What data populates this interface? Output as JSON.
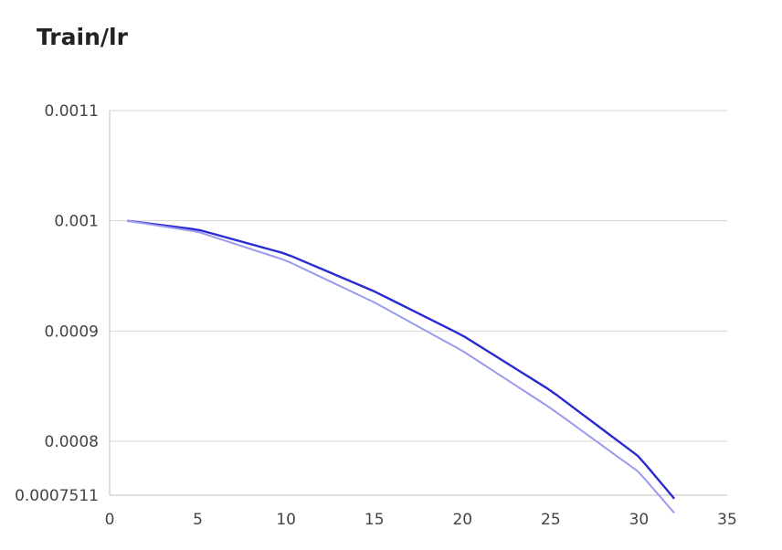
{
  "chart_data": {
    "type": "line",
    "title": "Train/lr",
    "xlabel": "",
    "ylabel": "",
    "xlim": [
      0,
      35
    ],
    "ylim": [
      0.0007511,
      0.0011
    ],
    "x_ticks": [
      "0",
      "5",
      "10",
      "15",
      "20",
      "25",
      "30",
      "35"
    ],
    "y_ticks": [
      "0.0011",
      "0.001",
      "0.0009",
      "0.0008",
      "0.0007511"
    ],
    "grid": true,
    "legend": "none",
    "series": [
      {
        "color": "#2a2ad0",
        "x": [
          1,
          5,
          10,
          15,
          20,
          25,
          30,
          32
        ],
        "y": [
          0.001,
          0.000992,
          0.00097,
          0.000936,
          0.000896,
          0.000846,
          0.000786,
          0.000748
        ]
      },
      {
        "color": "#9a9aef",
        "x": [
          1,
          5,
          10,
          15,
          20,
          25,
          30,
          32
        ],
        "y": [
          0.001,
          0.00099,
          0.000964,
          0.000926,
          0.000882,
          0.00083,
          0.000772,
          0.000735
        ]
      }
    ]
  }
}
